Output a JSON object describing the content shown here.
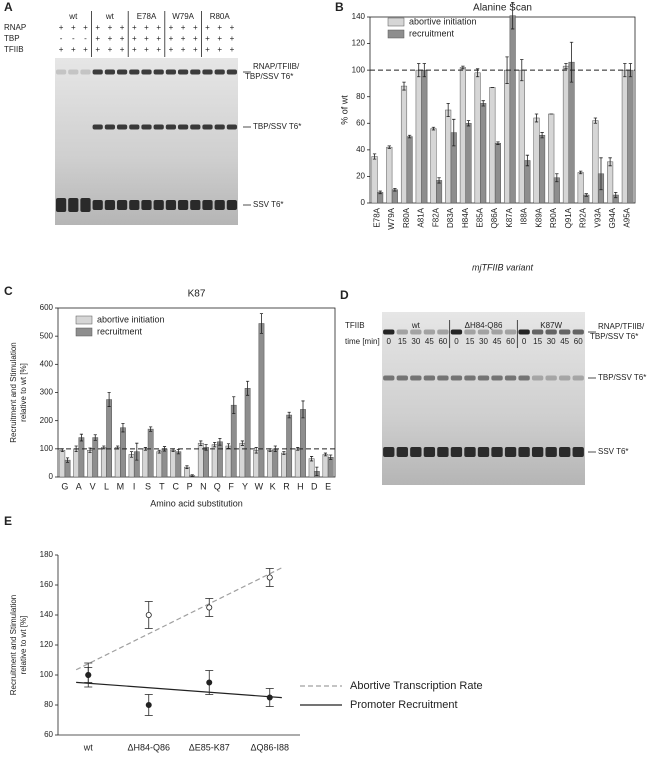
{
  "gels": [
    {
      "panel": "A",
      "rows": [
        {
          "label": "RNAP",
          "signs": [
            "+",
            "+",
            "+",
            "+",
            "+",
            "+",
            "+",
            "+",
            "+",
            "+",
            "+",
            "+",
            "+",
            "+",
            "+"
          ]
        },
        {
          "label": "TBP",
          "signs": [
            "-",
            "-",
            "-",
            "+",
            "+",
            "+",
            "+",
            "+",
            "+",
            "+",
            "+",
            "+",
            "+",
            "+",
            "+"
          ]
        },
        {
          "label": "TFIIB",
          "signs": [
            "+",
            "+",
            "+",
            "+",
            "+",
            "+",
            "+",
            "+",
            "+",
            "+",
            "+",
            "+",
            "+",
            "+",
            "+"
          ]
        }
      ],
      "lane_groups": [
        "wt",
        "wt",
        "E78A",
        "W79A",
        "R80A"
      ],
      "band_labels": [
        [
          "RNAP/TFIIB/",
          "TBP/SSV T6*"
        ],
        [
          "TBP/SSV T6*"
        ],
        [
          "SSV T6*"
        ]
      ]
    },
    {
      "panel": "D",
      "row_label": "TFIIB",
      "lane_groups": [
        "wt",
        "ΔH84-Q86",
        "K87W"
      ],
      "time_label": "time [min]",
      "times": [
        0,
        15,
        30,
        45,
        60,
        0,
        15,
        30,
        45,
        60,
        0,
        15,
        30,
        45,
        60
      ],
      "band_labels": [
        [
          "RNAP/TFIIB/",
          "TBP/SSV T6*"
        ],
        [
          "TBP/SSV T6*"
        ],
        [
          "SSV T6*"
        ]
      ]
    }
  ],
  "chart_data": [
    {
      "panel": "B",
      "type": "bar",
      "title": "Alanine Scan",
      "xlabel": "mjTFIIB variant",
      "ylabel": [
        "% of wt"
      ],
      "categories": [
        "E78A",
        "W79A",
        "R80A",
        "A81A",
        "F82A",
        "D83A",
        "H84A",
        "E85A",
        "Q86A",
        "K87A",
        "I88A",
        "K89A",
        "R90A",
        "Q91A",
        "R92A",
        "V93A",
        "G94A",
        "A95A"
      ],
      "series": [
        {
          "name": "abortive initiation",
          "color": "#d6d6d6",
          "values": [
            35,
            42,
            88,
            100,
            56,
            70,
            102,
            98,
            87,
            100,
            100,
            64,
            67,
            103,
            23,
            62,
            31,
            100
          ],
          "errors": [
            2,
            1,
            3,
            5,
            1,
            5,
            1,
            3,
            0,
            10,
            8,
            3,
            0,
            2,
            1,
            2,
            3,
            5
          ]
        },
        {
          "name": "recruitment",
          "color": "#8e8e8e",
          "values": [
            8,
            10,
            50,
            100,
            17,
            53,
            60,
            75,
            45,
            141,
            32,
            51,
            19,
            106,
            6,
            22,
            6,
            100
          ],
          "errors": [
            1,
            1,
            1,
            5,
            2,
            10,
            2,
            2,
            1,
            10,
            4,
            2,
            3,
            15,
            1,
            12,
            2,
            5
          ]
        }
      ],
      "ylim": [
        0,
        140
      ],
      "yticks": [
        0,
        20,
        40,
        60,
        80,
        100,
        120,
        140
      ],
      "reference_line": 100,
      "legend": "upper left"
    },
    {
      "panel": "C",
      "type": "bar",
      "title": "K87",
      "xlabel": "Amino acid substitution",
      "ylabel": [
        "Recruitment and Stimulation",
        "relative to wt [%]"
      ],
      "categories": [
        "G",
        "A",
        "V",
        "L",
        "M",
        "I",
        "S",
        "T",
        "C",
        "P",
        "N",
        "Q",
        "F",
        "Y",
        "W",
        "K",
        "R",
        "H",
        "D",
        "E"
      ],
      "series": [
        {
          "name": "abortive initiation",
          "color": "#d6d6d6",
          "values": [
            95,
            100,
            95,
            105,
            105,
            80,
            100,
            90,
            95,
            35,
            120,
            115,
            110,
            120,
            95,
            95,
            85,
            100,
            65,
            80
          ],
          "errors": [
            5,
            10,
            8,
            5,
            5,
            10,
            5,
            5,
            5,
            5,
            8,
            8,
            8,
            8,
            10,
            5,
            5,
            5,
            8,
            5
          ]
        },
        {
          "name": "recruitment",
          "color": "#8e8e8e",
          "values": [
            60,
            140,
            140,
            275,
            175,
            90,
            170,
            100,
            90,
            5,
            105,
            125,
            255,
            315,
            545,
            100,
            220,
            240,
            20,
            70
          ],
          "errors": [
            8,
            12,
            10,
            25,
            15,
            30,
            8,
            8,
            8,
            3,
            10,
            12,
            30,
            25,
            35,
            10,
            10,
            30,
            15,
            8
          ]
        }
      ],
      "ylim": [
        0,
        600
      ],
      "yticks": [
        0,
        100,
        200,
        300,
        400,
        500,
        600
      ],
      "reference_line": 100,
      "legend": "upper left"
    },
    {
      "panel": "E",
      "type": "line",
      "ylabel": [
        "Recruitment and Stimulation",
        "relative to wt [%]"
      ],
      "categories": [
        "wt",
        "ΔH84-Q86",
        "ΔE85-K87",
        "ΔQ86-I88"
      ],
      "series": [
        {
          "name": "Abortive Transcription Rate",
          "color": "#a0a0a0",
          "dashed": true,
          "marker": "open",
          "values": [
            100,
            140,
            145,
            165
          ],
          "errors": [
            5,
            9,
            6,
            6
          ]
        },
        {
          "name": "Promoter Recruitment",
          "color": "#222222",
          "dashed": false,
          "marker": "filled",
          "values": [
            100,
            80,
            95,
            85
          ],
          "errors": [
            8,
            7,
            8,
            6
          ]
        }
      ],
      "ylim": [
        60,
        180
      ],
      "yticks": [
        60,
        80,
        100,
        120,
        140,
        160,
        180
      ],
      "legend": "right"
    }
  ]
}
